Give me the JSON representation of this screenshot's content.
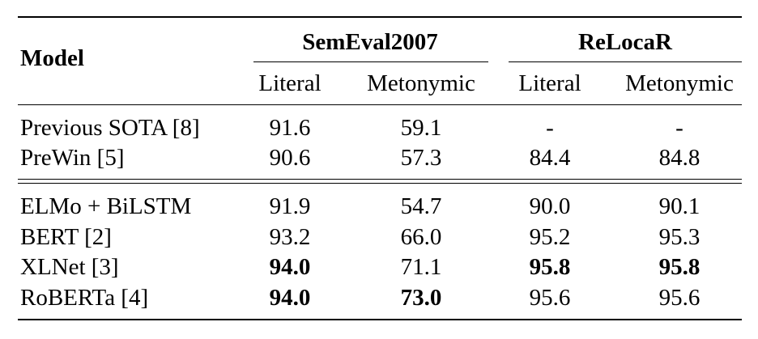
{
  "table": {
    "model_header": "Model",
    "groups": [
      {
        "name": "SemEval2007",
        "cols": [
          "Literal",
          "Metonymic"
        ]
      },
      {
        "name": "ReLocaR",
        "cols": [
          "Literal",
          "Metonymic"
        ]
      }
    ],
    "section1": [
      {
        "model": "Previous SOTA [8]",
        "values": [
          "91.6",
          "59.1",
          "-",
          "-"
        ],
        "bold": [
          false,
          false,
          false,
          false
        ]
      },
      {
        "model": "PreWin [5]",
        "values": [
          "90.6",
          "57.3",
          "84.4",
          "84.8"
        ],
        "bold": [
          false,
          false,
          false,
          false
        ]
      }
    ],
    "section2": [
      {
        "model": "ELMo + BiLSTM",
        "values": [
          "91.9",
          "54.7",
          "90.0",
          "90.1"
        ],
        "bold": [
          false,
          false,
          false,
          false
        ]
      },
      {
        "model": "BERT [2]",
        "values": [
          "93.2",
          "66.0",
          "95.2",
          "95.3"
        ],
        "bold": [
          false,
          false,
          false,
          false
        ]
      },
      {
        "model": "XLNet [3]",
        "values": [
          "94.0",
          "71.1",
          "95.8",
          "95.8"
        ],
        "bold": [
          true,
          false,
          true,
          true
        ]
      },
      {
        "model": "RoBERTa [4]",
        "values": [
          "94.0",
          "73.0",
          "95.6",
          "95.6"
        ],
        "bold": [
          true,
          true,
          false,
          false
        ]
      }
    ]
  }
}
